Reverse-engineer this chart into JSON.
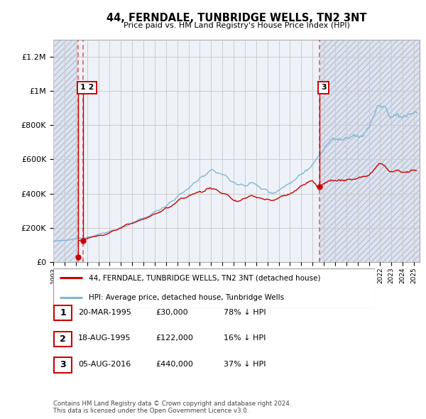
{
  "title": "44, FERNDALE, TUNBRIDGE WELLS, TN2 3NT",
  "subtitle": "Price paid vs. HM Land Registry's House Price Index (HPI)",
  "ylabel_ticks": [
    0,
    200000,
    400000,
    600000,
    800000,
    1000000,
    1200000
  ],
  "ylabel_labels": [
    "£0",
    "£200K",
    "£400K",
    "£600K",
    "£800K",
    "£1M",
    "£1.2M"
  ],
  "ylim": [
    0,
    1300000
  ],
  "xlim_start": 1993.0,
  "xlim_end": 2025.5,
  "hatch_left_end": 1995.22,
  "hatch_right_start": 2016.59,
  "transactions": [
    {
      "date_num": 1995.22,
      "price": 30000,
      "label": "1"
    },
    {
      "date_num": 1995.62,
      "price": 122000,
      "label": "2"
    },
    {
      "date_num": 2016.59,
      "price": 440000,
      "label": "3"
    }
  ],
  "transaction_table": [
    {
      "num": "1",
      "date": "20-MAR-1995",
      "price": "£30,000",
      "hpi": "78% ↓ HPI"
    },
    {
      "num": "2",
      "date": "18-AUG-1995",
      "price": "£122,000",
      "hpi": "16% ↓ HPI"
    },
    {
      "num": "3",
      "date": "05-AUG-2016",
      "price": "£440,000",
      "hpi": "37% ↓ HPI"
    }
  ],
  "legend_line1": "44, FERNDALE, TUNBRIDGE WELLS, TN2 3NT (detached house)",
  "legend_line2": "HPI: Average price, detached house, Tunbridge Wells",
  "footer": "Contains HM Land Registry data © Crown copyright and database right 2024.\nThis data is licensed under the Open Government Licence v3.0.",
  "red_line_color": "#cc0000",
  "blue_line_color": "#7fb7d4",
  "grid_color": "#cccccc",
  "dashed_line_color": "#e05050",
  "background_main": "#eef2f8",
  "background_hatch": "#dde3ef",
  "hatch_edge_color": "#b8c0d4"
}
